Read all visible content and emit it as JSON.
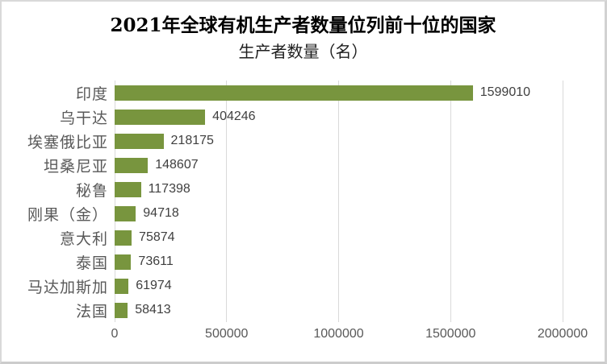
{
  "chart_data": {
    "type": "bar",
    "orientation": "horizontal",
    "title": "2021年全球有机生产者数量位列前十位的国家",
    "subtitle": "生产者数量（名）",
    "categories": [
      "印度",
      "乌干达",
      "埃塞俄比亚",
      "坦桑尼亚",
      "秘鲁",
      "刚果（金）",
      "意大利",
      "泰国",
      "马达加斯加",
      "法国"
    ],
    "values": [
      1599010,
      404246,
      218175,
      148607,
      117398,
      94718,
      75874,
      73611,
      61974,
      58413
    ],
    "value_labels": [
      "1599010",
      "404246",
      "218175",
      "148607",
      "117398",
      "94718",
      "75874",
      "73611",
      "61974",
      "58413"
    ],
    "x_ticks": [
      "0",
      "500000",
      "1000000",
      "1500000",
      "2000000"
    ],
    "xlim": [
      0,
      2000000
    ],
    "grid": "vertical-gridlines-on",
    "legend": "none",
    "colors": {
      "bar": "#78953E",
      "gridline": "#d9d9d9",
      "category_label": "#595959",
      "value_label": "#3f3f3f",
      "axis_label": "#595959",
      "title": "#000000",
      "background": "#ffffff",
      "frame_border": "#d9d9d9"
    }
  }
}
